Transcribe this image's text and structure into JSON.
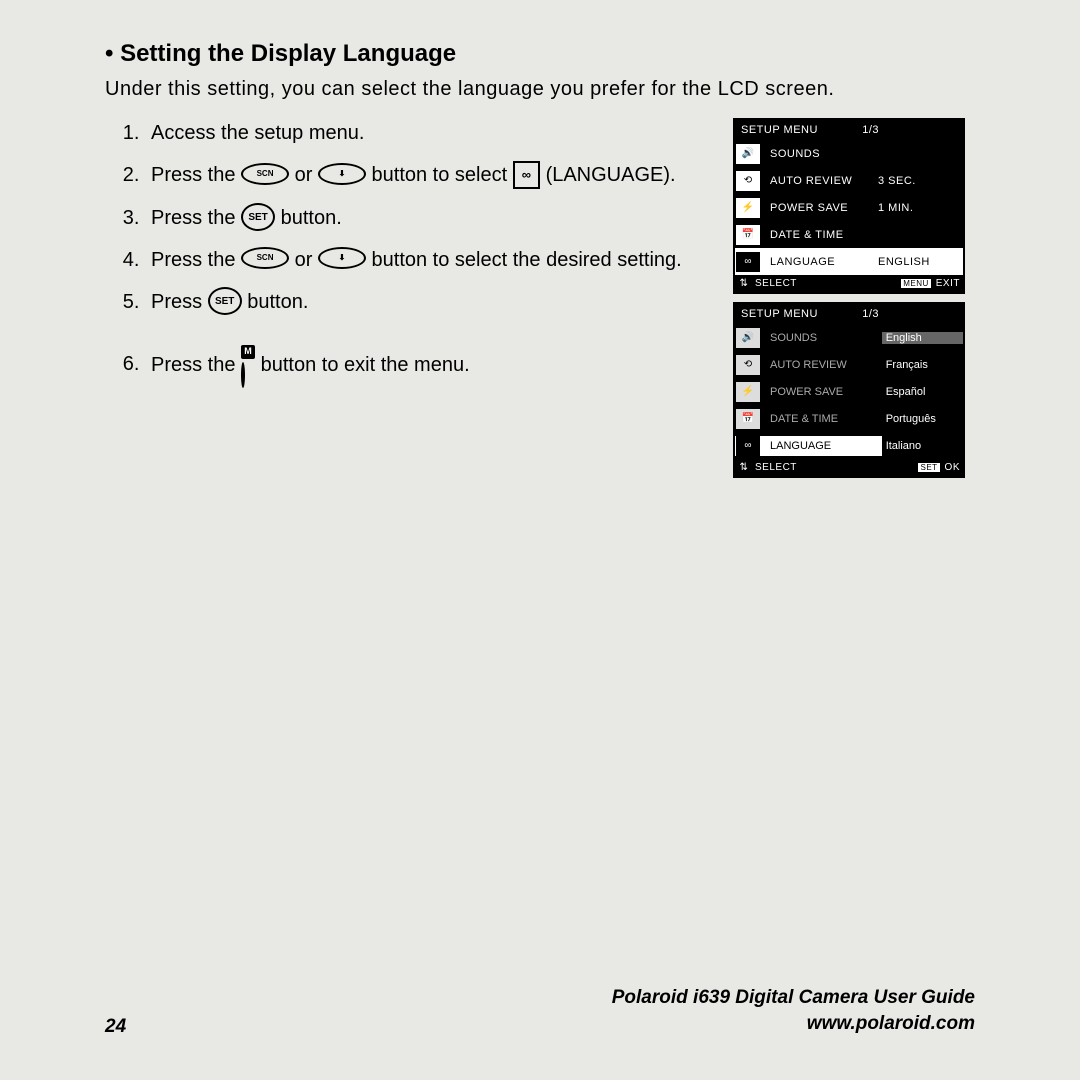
{
  "heading": "• Setting the Display Language",
  "intro": "Under this setting, you can select the language you prefer for the LCD screen.",
  "steps": {
    "s1": "Access the setup menu.",
    "s2a": "Press the ",
    "s2b": " or ",
    "s2c": " button to select ",
    "s2d": " (LANGUAGE).",
    "s3a": "Press the ",
    "s3b": " button.",
    "s4a": "Press the ",
    "s4b": " or ",
    "s4c": " button to select the desired setting.",
    "s5a": "Press ",
    "s5b": " button.",
    "s6a": "Press the ",
    "s6b": " button to exit the menu."
  },
  "buttons": {
    "scn": "SCN",
    "down": "⬇",
    "set": "SET",
    "menu_m": "M",
    "lang_glyph": "∞"
  },
  "screen1": {
    "title": "SETUP MENU",
    "page": "1/3",
    "rows": [
      {
        "icon": "🔊",
        "label": "SOUNDS",
        "value": ""
      },
      {
        "icon": "⟲",
        "label": "AUTO REVIEW",
        "value": "3 SEC."
      },
      {
        "icon": "⚡",
        "label": "POWER SAVE",
        "value": "1 MIN."
      },
      {
        "icon": "📅",
        "label": "DATE & TIME",
        "value": ""
      },
      {
        "icon": "∞",
        "label": "LANGUAGE",
        "value": "ENGLISH",
        "highlight": true
      }
    ],
    "footer_left_icon": "⇅",
    "footer_left": "SELECT",
    "footer_right_icon": "MENU",
    "footer_right": "EXIT"
  },
  "screen2": {
    "title": "SETUP MENU",
    "page": "1/3",
    "rows": [
      {
        "icon": "🔊",
        "label": "SOUNDS",
        "opt": "English",
        "sel_opt": true
      },
      {
        "icon": "⟲",
        "label": "AUTO REVIEW",
        "opt": "Français"
      },
      {
        "icon": "⚡",
        "label": "POWER SAVE",
        "opt": "Español"
      },
      {
        "icon": "📅",
        "label": "DATE & TIME",
        "opt": "Português"
      },
      {
        "icon": "∞",
        "label": "LANGUAGE",
        "opt": "Italiano",
        "sel_left": true
      }
    ],
    "footer_left_icon": "⇅",
    "footer_left": "SELECT",
    "footer_right_icon": "SET",
    "footer_right": "OK"
  },
  "footer": {
    "page_num": "24",
    "guide": "Polaroid i639 Digital Camera User Guide",
    "url": "www.polaroid.com"
  }
}
